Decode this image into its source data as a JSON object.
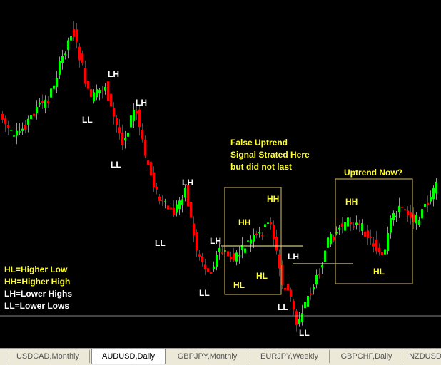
{
  "colors": {
    "background": "#000000",
    "bull_candle": "#00ff00",
    "bear_candle": "#ff0000",
    "box_outline": "#d8c060",
    "label_white": "#ffffff",
    "label_yellow": "#ffff33",
    "level_line": "#c0c0c0"
  },
  "annotations": {
    "lh_1": "LH",
    "ll_1": "LL",
    "lh_2": "LH",
    "ll_2": "LL",
    "lh_3": "LH",
    "ll_3": "LL",
    "lh_4": "LH",
    "ll_4": "LL",
    "lh_5": "LH",
    "ll_5": "LL",
    "ll_6": "LL",
    "false_box_hh_1": "HH",
    "false_box_hh_2": "HH",
    "false_box_hl_1": "HL",
    "false_box_hl_2": "HL",
    "uptrend_hh": "HH",
    "uptrend_hl": "HL",
    "false_uptrend_note": [
      "False Uptrend",
      "Signal Strated Here",
      "but did not last"
    ],
    "uptrend_now_note": "Uptrend Now?"
  },
  "legend": {
    "hl": "HL=Higher Low",
    "hh": "HH=Higher High",
    "lh": "LH=Lower Highs",
    "ll": "LL=Lower Lows"
  },
  "tabs": [
    {
      "label": "USDCAD,Monthly",
      "active": false
    },
    {
      "label": "AUDUSD,Daily",
      "active": true
    },
    {
      "label": "GBPJPY,Monthly",
      "active": false
    },
    {
      "label": "EURJPY,Weekly",
      "active": false
    },
    {
      "label": "GBPCHF,Daily",
      "active": false
    },
    {
      "label": "NZDUSD",
      "active": false
    }
  ]
}
